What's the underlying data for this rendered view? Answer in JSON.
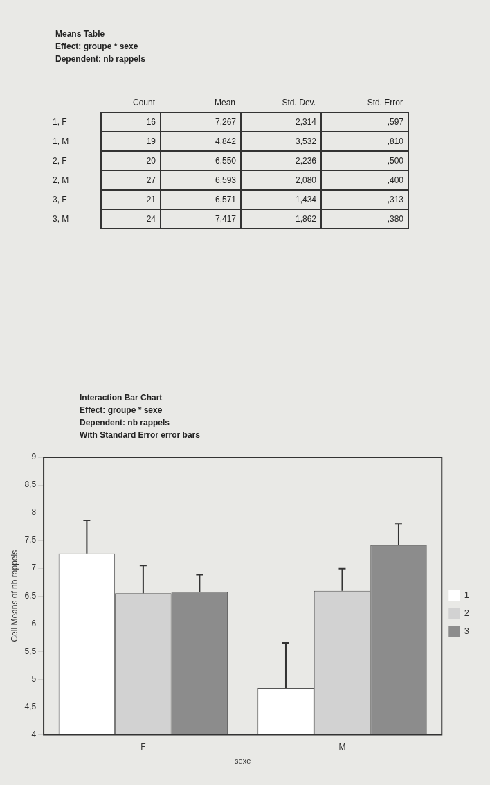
{
  "chart_data": [
    {
      "type": "other",
      "title": "Means Table",
      "annotations": [
        "Effect: groupe * sexe",
        "Dependent: nb rappels"
      ],
      "categories": [
        "Count",
        "Mean",
        "Std. Dev.",
        "Std. Error"
      ],
      "y_categories": [
        "1, F",
        "1, M",
        "2, F",
        "2, M",
        "3, F",
        "3, M"
      ],
      "cell_labels": [
        [
          "16",
          "7,267",
          "2,314",
          ",597"
        ],
        [
          "19",
          "4,842",
          "3,532",
          ",810"
        ],
        [
          "20",
          "6,550",
          "2,236",
          ",500"
        ],
        [
          "27",
          "6,593",
          "2,080",
          ",400"
        ],
        [
          "21",
          "6,571",
          "1,434",
          ",313"
        ],
        [
          "24",
          "7,417",
          "1,862",
          ",380"
        ]
      ]
    },
    {
      "type": "bar",
      "title": "Interaction Bar Chart",
      "subtitle": "Effect: groupe * sexe",
      "annotations": [
        "Dependent: nb rappels",
        "With Standard Error error bars"
      ],
      "xlabel": "sexe",
      "ylabel": "Cell Means of nb rappels",
      "categories": [
        "F",
        "M"
      ],
      "series": [
        {
          "name": "1",
          "color": "#ffffff",
          "values": [
            7.267,
            4.842
          ],
          "errors": [
            [
              7.267,
              7.864
            ],
            [
              4.842,
              5.652
            ]
          ]
        },
        {
          "name": "2",
          "color": "#d2d2d2",
          "values": [
            6.55,
            6.593
          ],
          "errors": [
            [
              6.55,
              7.05
            ],
            [
              6.593,
              6.993
            ]
          ]
        },
        {
          "name": "3",
          "color": "#8c8c8c",
          "values": [
            6.571,
            7.417
          ],
          "errors": [
            [
              6.571,
              6.884
            ],
            [
              7.417,
              7.797
            ]
          ]
        }
      ],
      "ylim": [
        4,
        9
      ],
      "yticks": [
        4,
        {
          "value": 4.5,
          "label": "4,5"
        },
        5,
        {
          "value": 5.5,
          "label": "5,5"
        },
        6,
        {
          "value": 6.5,
          "label": "6,5"
        },
        7,
        {
          "value": 7.5,
          "label": "7,5"
        },
        8,
        {
          "value": 8.5,
          "label": "8,5"
        },
        9
      ],
      "grid": false,
      "legend": "right"
    }
  ]
}
